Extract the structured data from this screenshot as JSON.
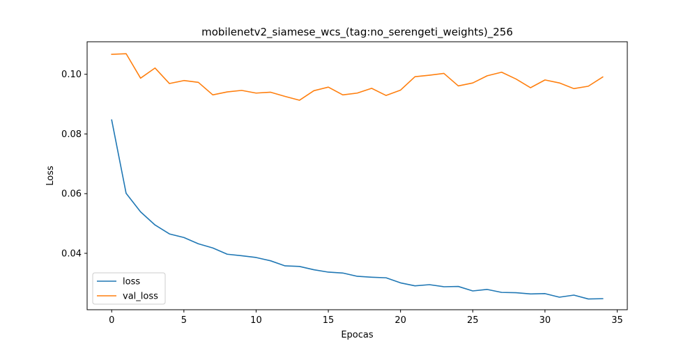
{
  "chart_data": {
    "type": "line",
    "title": "mobilenetv2_siamese_wcs_(tag:no_serengeti_weights)_256",
    "xlabel": "Epocas",
    "ylabel": "Loss",
    "xlim": [
      -1.7,
      35.7
    ],
    "ylim": [
      0.0211,
      0.1109
    ],
    "xticks": [
      0,
      5,
      10,
      15,
      20,
      25,
      30,
      35
    ],
    "yticks": [
      0.04,
      0.06,
      0.08,
      0.1
    ],
    "ytick_labels": [
      "0.04",
      "0.06",
      "0.08",
      "0.10"
    ],
    "grid": false,
    "legend_position": "lower-left",
    "x": [
      0,
      1,
      2,
      3,
      4,
      5,
      6,
      7,
      8,
      9,
      10,
      11,
      12,
      13,
      14,
      15,
      16,
      17,
      18,
      19,
      20,
      21,
      22,
      23,
      24,
      25,
      26,
      27,
      28,
      29,
      30,
      31,
      32,
      33,
      34
    ],
    "series": [
      {
        "name": "loss",
        "color": "#1f77b4",
        "values": [
          0.0847,
          0.0601,
          0.0539,
          0.0495,
          0.0465,
          0.0453,
          0.0432,
          0.0418,
          0.0397,
          0.0392,
          0.0386,
          0.0375,
          0.0358,
          0.0356,
          0.0345,
          0.0337,
          0.0334,
          0.0323,
          0.032,
          0.0318,
          0.0301,
          0.0291,
          0.0295,
          0.0288,
          0.0289,
          0.0274,
          0.0279,
          0.0269,
          0.0268,
          0.0264,
          0.0265,
          0.0253,
          0.026,
          0.0247,
          0.0248
        ]
      },
      {
        "name": "val_loss",
        "color": "#ff7f0e",
        "values": [
          0.1067,
          0.1069,
          0.0987,
          0.1021,
          0.0969,
          0.0979,
          0.0973,
          0.0931,
          0.0941,
          0.0946,
          0.0937,
          0.094,
          0.0926,
          0.0913,
          0.0945,
          0.0957,
          0.0931,
          0.0937,
          0.0953,
          0.0929,
          0.0947,
          0.0992,
          0.0997,
          0.1003,
          0.0961,
          0.0971,
          0.0995,
          0.1007,
          0.0984,
          0.0955,
          0.0981,
          0.0971,
          0.0952,
          0.096,
          0.0991
        ]
      }
    ]
  }
}
